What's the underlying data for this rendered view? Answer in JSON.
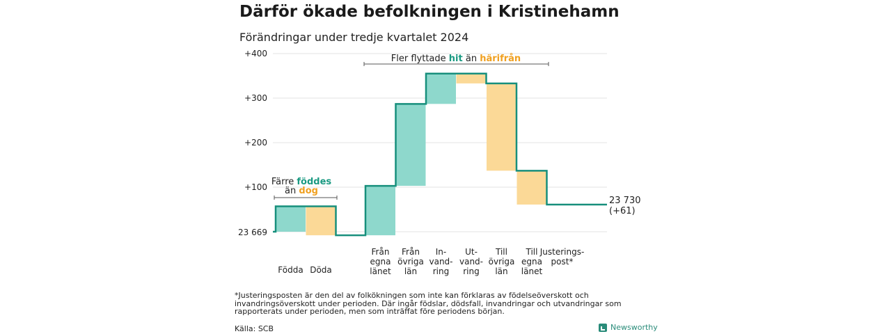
{
  "title": "Därför ökade befolkningen i Kristinehamn",
  "subtitle": "Förändringar under tredje kvartalet 2024",
  "colors": {
    "increase": "#8ed8cc",
    "decrease": "#fbd997",
    "line": "#178f7c",
    "hit": "#1a9a82",
    "harifran": "#f0a020",
    "grid": "#e3e3e3"
  },
  "chart_data": {
    "type": "waterfall",
    "start_label": "23 669",
    "start_value": 0,
    "end_label": "23 730",
    "end_change": "(+61)",
    "yticks": [
      "+400",
      "+300",
      "+200",
      "+100"
    ],
    "ytick_values": [
      400,
      300,
      200,
      100
    ],
    "ylim": [
      -10,
      400
    ],
    "steps": [
      {
        "label": [
          "Födda"
        ],
        "from": 0,
        "to": 57
      },
      {
        "label": [
          "Döda"
        ],
        "from": 57,
        "to": -8
      },
      {
        "label": [
          "Från",
          "egna",
          "länet"
        ],
        "from": -8,
        "to": 103
      },
      {
        "label": [
          "Från",
          "övriga",
          "län"
        ],
        "from": 103,
        "to": 287
      },
      {
        "label": [
          "In-",
          "vand-",
          "ring"
        ],
        "from": 287,
        "to": 355
      },
      {
        "label": [
          "Ut-",
          "vand-",
          "ring"
        ],
        "from": 355,
        "to": 333
      },
      {
        "label": [
          "Till",
          "övriga",
          "län"
        ],
        "from": 333,
        "to": 137
      },
      {
        "label": [
          "Till",
          "egna",
          "länet"
        ],
        "from": 137,
        "to": 61
      },
      {
        "label": [
          "Justerings-",
          "post*"
        ],
        "from": 61,
        "to": 61
      }
    ],
    "annotations": {
      "left": {
        "line1": "Färre ",
        "line1_hl": "föddes",
        "line2": "än ",
        "line2_hl": "dog"
      },
      "right": {
        "pre": "Fler flyttade ",
        "hl1": "hit",
        "mid": " än ",
        "hl2": "härifrån"
      }
    }
  },
  "footnote": "*Justeringsposten är den del av folkökningen som inte kan förklaras av födelseöverskott och invandringsöverskott under perioden. Där ingår födslar, dödsfall, invandringar och utvandringar som rapporterats under perioden, men som inträffat före periodens början.",
  "source": "Källa: SCB",
  "brand": "Newsworthy"
}
